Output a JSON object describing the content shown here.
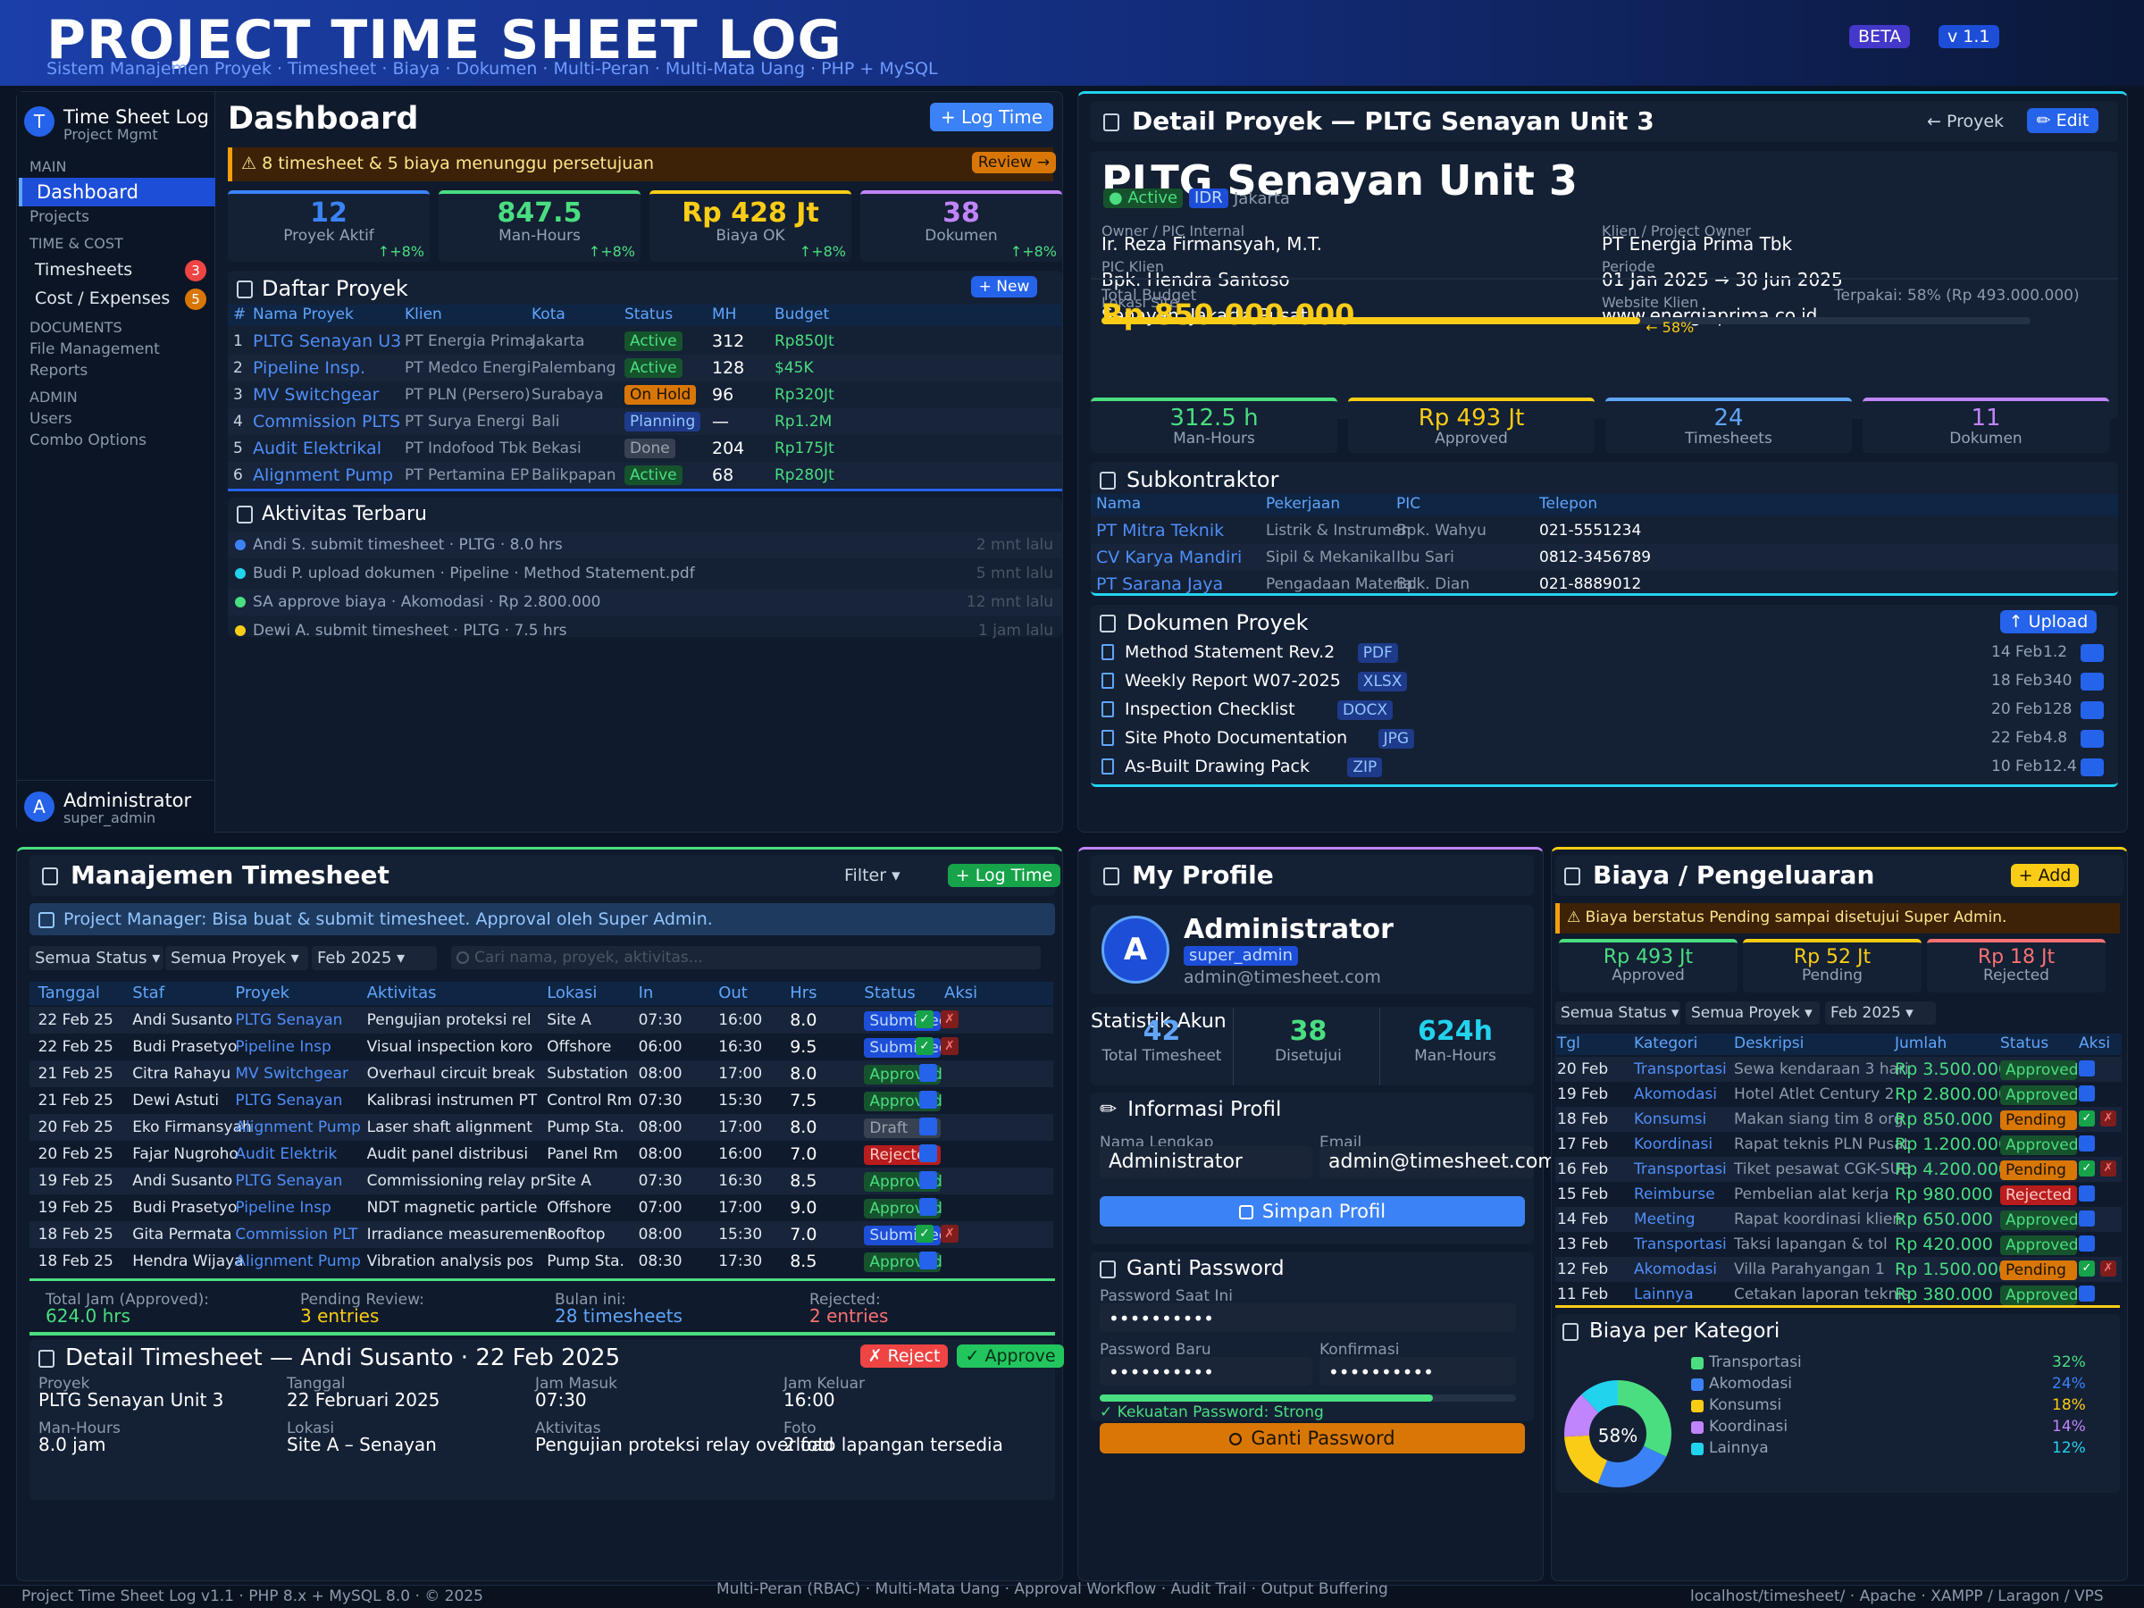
{
  "header": {
    "title": "PROJECT TIME SHEET LOG",
    "subtitle": "Sistem Manajemen Proyek  ·  Timesheet  ·  Biaya  ·  Dokumen  ·  Multi-Peran  ·  Multi-Mata Uang  ·  PHP + MySQL",
    "beta": "BETA",
    "version": "v 1.1"
  },
  "sidebar": {
    "app": "Time Sheet Log",
    "sub": "Project Mgmt",
    "logo": "T",
    "sections": {
      "main": "MAIN",
      "time": "TIME & COST",
      "docs": "DOCUMENTS",
      "admin": "ADMIN"
    },
    "items": {
      "dashboard": "Dashboard",
      "projects": "Projects",
      "timesheets": "Timesheets",
      "timesheets_count": "3",
      "cost": "Cost / Expenses",
      "cost_count": "5",
      "files": "File Management",
      "reports": "Reports",
      "users": "Users",
      "combo": "Combo Options"
    },
    "user": {
      "avatar": "A",
      "name": "Administrator",
      "role": "super_admin"
    }
  },
  "dashboard": {
    "title": "Dashboard",
    "log_time": "+ Log Time",
    "alert": "⚠  8 timesheet & 5 biaya menunggu persetujuan",
    "review": "Review →",
    "stats": [
      {
        "value": "12",
        "label": "Proyek Aktif",
        "trend": "↑+8%",
        "color": "#3b82f6"
      },
      {
        "value": "847.5",
        "label": "Man-Hours",
        "trend": "↑+8%",
        "color": "#4ade80"
      },
      {
        "value": "Rp 428 Jt",
        "label": "Biaya OK",
        "trend": "↑+8%",
        "color": "#facc15"
      },
      {
        "value": "38",
        "label": "Dokumen",
        "trend": "↑+8%",
        "color": "#c084fc"
      }
    ],
    "projects": {
      "title": "Daftar Proyek",
      "new": "+ New",
      "headers": [
        "#",
        "Nama Proyek",
        "Klien",
        "Kota",
        "Status",
        "MH",
        "Budget"
      ],
      "rows": [
        {
          "no": "1",
          "name": "PLTG Senayan U3",
          "client": "PT Energia Prima",
          "city": "Jakarta",
          "status": "Active",
          "mh": "312",
          "budget": "Rp850Jt"
        },
        {
          "no": "2",
          "name": "Pipeline Insp.",
          "client": "PT Medco Energi",
          "city": "Palembang",
          "status": "Active",
          "mh": "128",
          "budget": "$45K"
        },
        {
          "no": "3",
          "name": "MV Switchgear",
          "client": "PT PLN (Persero)",
          "city": "Surabaya",
          "status": "On Hold",
          "mh": "96",
          "budget": "Rp320Jt"
        },
        {
          "no": "4",
          "name": "Commission PLTS",
          "client": "PT Surya Energi",
          "city": "Bali",
          "status": "Planning",
          "mh": "—",
          "budget": "Rp1.2M"
        },
        {
          "no": "5",
          "name": "Audit Elektrikal",
          "client": "PT Indofood Tbk",
          "city": "Bekasi",
          "status": "Done",
          "mh": "204",
          "budget": "Rp175Jt"
        },
        {
          "no": "6",
          "name": "Alignment Pump",
          "client": "PT Pertamina EP",
          "city": "Balikpapan",
          "status": "Active",
          "mh": "68",
          "budget": "Rp280Jt"
        }
      ]
    },
    "activity": {
      "title": "Aktivitas Terbaru",
      "items": [
        {
          "text": "Andi S. submit timesheet · PLTG · 8.0 hrs",
          "time": "2 mnt lalu",
          "color": "#3b82f6"
        },
        {
          "text": "Budi P. upload dokumen · Pipeline · Method Statement.pdf",
          "time": "5 mnt lalu",
          "color": "#22d3ee"
        },
        {
          "text": "SA approve biaya · Akomodasi · Rp 2.800.000",
          "time": "12 mnt lalu",
          "color": "#4ade80"
        },
        {
          "text": "Dewi A. submit timesheet · PLTG · 7.5 hrs",
          "time": "1 jam lalu",
          "color": "#facc15"
        }
      ]
    }
  },
  "detail": {
    "title": "Detail Proyek — PLTG Senayan Unit 3",
    "back": "← Proyek",
    "edit": "✏ Edit",
    "name": "PLTG Senayan Unit 3",
    "status": "● Active",
    "currency": "IDR",
    "city": "Jakarta",
    "fields": [
      {
        "label": "Owner / PIC Internal",
        "value": "Ir. Reza Firmansyah, M.T."
      },
      {
        "label": "Klien / Project Owner",
        "value": "PT Energia Prima Tbk"
      },
      {
        "label": "PIC Klien",
        "value": "Bpk. Hendra Santoso"
      },
      {
        "label": "Periode",
        "value": "01 Jan 2025  →  30 Jun 2025"
      },
      {
        "label": "Lokasi Site",
        "value": "Senayan, Jakarta Pusat"
      },
      {
        "label": "Website Klien",
        "value": "www.energiaprima.co.id"
      }
    ],
    "budget": {
      "label": "Total Budget",
      "value": "Rp 850.000.000",
      "used": "Terpakai: 58%  (Rp 493.000.000)",
      "pct_label": "← 58%",
      "fraction": 0.58
    },
    "stats": [
      {
        "value": "312.5 h",
        "label": "Man-Hours",
        "color": "#4ade80"
      },
      {
        "value": "Rp 493 Jt",
        "label": "Approved",
        "color": "#facc15"
      },
      {
        "value": "24",
        "label": "Timesheets",
        "color": "#60a5fa"
      },
      {
        "value": "11",
        "label": "Dokumen",
        "color": "#c084fc"
      }
    ],
    "subcon": {
      "title": "Subkontraktor",
      "headers": [
        "Nama",
        "Pekerjaan",
        "PIC",
        "Telepon"
      ],
      "rows": [
        {
          "name": "PT Mitra Teknik",
          "work": "Listrik & Instrumen",
          "pic": "Bpk. Wahyu",
          "phone": "021-5551234"
        },
        {
          "name": "CV Karya Mandiri",
          "work": "Sipil & Mekanikal",
          "pic": "Ibu Sari",
          "phone": "0812-3456789"
        },
        {
          "name": "PT Sarana Jaya",
          "work": "Pengadaan Material",
          "pic": "Bpk. Dian",
          "phone": "021-8889012"
        }
      ]
    },
    "docs": {
      "title": "Dokumen Proyek",
      "upload": "↑ Upload",
      "items": [
        {
          "name": "Method Statement Rev.2",
          "type": "PDF",
          "date": "14 Feb",
          "size": "1.2"
        },
        {
          "name": "Weekly Report W07-2025",
          "type": "XLSX",
          "date": "18 Feb",
          "size": "340"
        },
        {
          "name": "Inspection Checklist",
          "type": "DOCX",
          "date": "20 Feb",
          "size": "128"
        },
        {
          "name": "Site Photo Documentation",
          "type": "JPG",
          "date": "22 Feb",
          "size": "4.8"
        },
        {
          "name": "As-Built Drawing Pack",
          "type": "ZIP",
          "date": "10 Feb",
          "size": "12.4"
        }
      ]
    }
  },
  "timesheet": {
    "title": "Manajemen Timesheet",
    "filter": "Filter ▾",
    "log_time": "+ Log Time",
    "info": "Project Manager: Bisa buat & submit timesheet. Approval oleh Super Admin.",
    "filters": {
      "status": "Semua Status ▾",
      "project": "Semua Proyek ▾",
      "month": "Feb 2025 ▾",
      "search": "Cari nama, proyek, aktivitas..."
    },
    "headers": [
      "Tanggal",
      "Staf",
      "Proyek",
      "Aktivitas",
      "Lokasi",
      "In",
      "Out",
      "Hrs",
      "Status",
      "Aksi"
    ],
    "rows": [
      {
        "date": "22 Feb 25",
        "staff": "Andi Susanto",
        "project": "PLTG Senayan",
        "activity": "Pengujian proteksi rel",
        "loc": "Site A",
        "in": "07:30",
        "out": "16:00",
        "hrs": "8.0",
        "status": "Submitted"
      },
      {
        "date": "22 Feb 25",
        "staff": "Budi Prasetyo",
        "project": "Pipeline Insp",
        "activity": "Visual inspection koro",
        "loc": "Offshore",
        "in": "06:00",
        "out": "16:30",
        "hrs": "9.5",
        "status": "Submitted"
      },
      {
        "date": "21 Feb 25",
        "staff": "Citra Rahayu",
        "project": "MV Switchgear",
        "activity": "Overhaul circuit break",
        "loc": "Substation",
        "in": "08:00",
        "out": "17:00",
        "hrs": "8.0",
        "status": "Approved"
      },
      {
        "date": "21 Feb 25",
        "staff": "Dewi Astuti",
        "project": "PLTG Senayan",
        "activity": "Kalibrasi instrumen PT",
        "loc": "Control Rm",
        "in": "07:30",
        "out": "15:30",
        "hrs": "7.5",
        "status": "Approved"
      },
      {
        "date": "20 Feb 25",
        "staff": "Eko Firmansyah",
        "project": "Alignment Pump",
        "activity": "Laser shaft alignment",
        "loc": "Pump Sta.",
        "in": "08:00",
        "out": "17:00",
        "hrs": "8.0",
        "status": "Draft"
      },
      {
        "date": "20 Feb 25",
        "staff": "Fajar Nugroho",
        "project": "Audit Elektrik",
        "activity": "Audit panel distribusi",
        "loc": "Panel Rm",
        "in": "08:00",
        "out": "16:00",
        "hrs": "7.0",
        "status": "Rejected"
      },
      {
        "date": "19 Feb 25",
        "staff": "Andi Susanto",
        "project": "PLTG Senayan",
        "activity": "Commissioning relay pr",
        "loc": "Site A",
        "in": "07:30",
        "out": "16:30",
        "hrs": "8.5",
        "status": "Approved"
      },
      {
        "date": "19 Feb 25",
        "staff": "Budi Prasetyo",
        "project": "Pipeline Insp",
        "activity": "NDT magnetic particle",
        "loc": "Offshore",
        "in": "07:00",
        "out": "17:00",
        "hrs": "9.0",
        "status": "Approved"
      },
      {
        "date": "18 Feb 25",
        "staff": "Gita Permata",
        "project": "Commission PLT",
        "activity": "Irradiance measurement",
        "loc": "Rooftop",
        "in": "08:00",
        "out": "15:30",
        "hrs": "7.0",
        "status": "Submitted"
      },
      {
        "date": "18 Feb 25",
        "staff": "Hendra Wijaya",
        "project": "Alignment Pump",
        "activity": "Vibration analysis pos",
        "loc": "Pump Sta.",
        "in": "08:30",
        "out": "17:30",
        "hrs": "8.5",
        "status": "Approved"
      }
    ],
    "summary": [
      {
        "label": "Total Jam (Approved):",
        "value": "624.0 hrs",
        "color": "#4ade80"
      },
      {
        "label": "Pending Review:",
        "value": "3 entries",
        "color": "#facc15"
      },
      {
        "label": "Bulan ini:",
        "value": "28 timesheets",
        "color": "#60a5fa"
      },
      {
        "label": "Rejected:",
        "value": "2 entries",
        "color": "#f87171"
      }
    ],
    "detail": {
      "title": "Detail Timesheet — Andi Susanto · 22 Feb 2025",
      "reject": "✗ Reject",
      "approve": "✓ Approve",
      "fields": [
        {
          "label": "Proyek",
          "value": "PLTG Senayan Unit 3"
        },
        {
          "label": "Tanggal",
          "value": "22 Februari 2025"
        },
        {
          "label": "Jam Masuk",
          "value": "07:30"
        },
        {
          "label": "Jam Keluar",
          "value": "16:00"
        },
        {
          "label": "Man-Hours",
          "value": "8.0 jam"
        },
        {
          "label": "Lokasi",
          "value": "Site A – Senayan"
        },
        {
          "label": "Aktivitas",
          "value": "Pengujian proteksi relay overload"
        },
        {
          "label": "Foto",
          "value": "2 foto lapangan tersedia"
        }
      ]
    }
  },
  "profile": {
    "title": "My Profile",
    "avatar": "A",
    "name": "Administrator",
    "role": "super_admin",
    "email": "admin@timesheet.com",
    "stats_title": "Statistik Akun",
    "stats": [
      {
        "value": "42",
        "label": "Total Timesheet",
        "color": "#60a5fa"
      },
      {
        "value": "38",
        "label": "Disetujui",
        "color": "#4ade80"
      },
      {
        "value": "624h",
        "label": "Man-Hours",
        "color": "#22d3ee"
      }
    ],
    "info_title": "Informasi Profil",
    "name_label": "Nama Lengkap",
    "name_value": "Administrator",
    "email_label": "Email",
    "email_value": "admin@timesheet.com",
    "save": "Simpan Profil",
    "pw_title": "Ganti Password",
    "pw_current": "Password Saat Ini",
    "pw_new": "Password Baru",
    "pw_confirm": "Konfirmasi",
    "pw_mask": "••••••••••",
    "strength": "✓ Kekuatan Password: Strong",
    "strength_fraction": 0.8,
    "change": "Ganti Password"
  },
  "expenses": {
    "title": "Biaya / Pengeluaran",
    "add": "+ Add",
    "alert": "⚠  Biaya berstatus Pending sampai disetujui Super Admin.",
    "stats": [
      {
        "value": "Rp 493 Jt",
        "label": "Approved",
        "color": "#4ade80"
      },
      {
        "value": "Rp 52 Jt",
        "label": "Pending",
        "color": "#facc15"
      },
      {
        "value": "Rp 18 Jt",
        "label": "Rejected",
        "color": "#f87171"
      }
    ],
    "filters": {
      "status": "Semua Status ▾",
      "project": "Semua Proyek ▾",
      "month": "Feb 2025 ▾"
    },
    "headers": [
      "Tgl",
      "Kategori",
      "Deskripsi",
      "Jumlah",
      "Status",
      "Aksi"
    ],
    "rows": [
      {
        "date": "20 Feb",
        "cat": "Transportasi",
        "desc": "Sewa kendaraan 3 hari",
        "amt": "Rp 3.500.000",
        "status": "Approved"
      },
      {
        "date": "19 Feb",
        "cat": "Akomodasi",
        "desc": "Hotel Atlet Century 2",
        "amt": "Rp 2.800.000",
        "status": "Approved"
      },
      {
        "date": "18 Feb",
        "cat": "Konsumsi",
        "desc": "Makan siang tim 8 org",
        "amt": "Rp 850.000",
        "status": "Pending"
      },
      {
        "date": "17 Feb",
        "cat": "Koordinasi",
        "desc": "Rapat teknis PLN Pusat",
        "amt": "Rp 1.200.000",
        "status": "Approved"
      },
      {
        "date": "16 Feb",
        "cat": "Transportasi",
        "desc": "Tiket pesawat CGK-SUB",
        "amt": "Rp 4.200.000",
        "status": "Pending"
      },
      {
        "date": "15 Feb",
        "cat": "Reimburse",
        "desc": "Pembelian alat kerja",
        "amt": "Rp 980.000",
        "status": "Rejected"
      },
      {
        "date": "14 Feb",
        "cat": "Meeting",
        "desc": "Rapat koordinasi klien",
        "amt": "Rp 650.000",
        "status": "Approved"
      },
      {
        "date": "13 Feb",
        "cat": "Transportasi",
        "desc": "Taksi lapangan & tol",
        "amt": "Rp 420.000",
        "status": "Approved"
      },
      {
        "date": "12 Feb",
        "cat": "Akomodasi",
        "desc": "Villa Parahyangan 1",
        "amt": "Rp 1.500.000",
        "status": "Pending"
      },
      {
        "date": "11 Feb",
        "cat": "Lainnya",
        "desc": "Cetakan laporan teknis",
        "amt": "Rp 380.000",
        "status": "Approved"
      }
    ],
    "cat_title": "Biaya per Kategori",
    "center": "58%",
    "categories": [
      {
        "name": "Transportasi",
        "pct": "32%",
        "value": 32,
        "color": "#4ade80"
      },
      {
        "name": "Akomodasi",
        "pct": "24%",
        "value": 24,
        "color": "#3b82f6"
      },
      {
        "name": "Konsumsi",
        "pct": "18%",
        "value": 18,
        "color": "#facc15"
      },
      {
        "name": "Koordinasi",
        "pct": "14%",
        "value": 14,
        "color": "#c084fc"
      },
      {
        "name": "Lainnya",
        "pct": "12%",
        "value": 12,
        "color": "#22d3ee"
      }
    ]
  },
  "footer": {
    "left": "Project Time Sheet Log  v1.1  ·  PHP 8.x + MySQL 8.0  ·  © 2025",
    "center": "Multi-Peran (RBAC)  ·  Multi-Mata Uang  ·  Approval Workflow  ·  Audit Trail  ·  Output Buffering",
    "right": "localhost/timesheet/  ·  Apache  ·  XAMPP / Laragon / VPS"
  }
}
